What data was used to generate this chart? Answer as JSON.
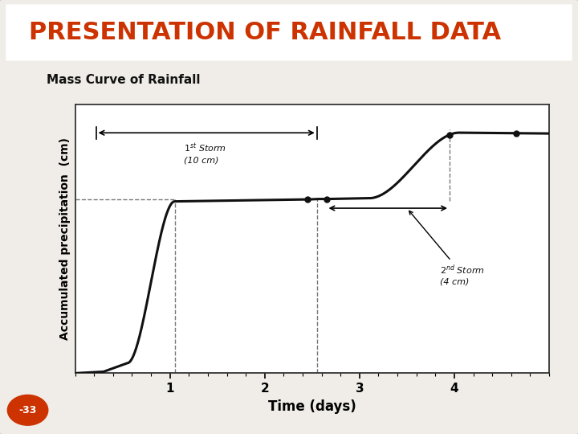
{
  "title": "PRESENTATION OF RAINFALL DATA",
  "title_color": "#cc3300",
  "title_bg": "#ffffff",
  "subtitle": "Mass Curve of Rainfall",
  "xlabel": "Time (days)",
  "ylabel": "Accumulated precipitation  (cm)",
  "outer_bg": "#f0ede8",
  "plot_bg": "#ffffff",
  "xlim": [
    0,
    5.0
  ],
  "x_ticks": [
    1,
    2,
    3,
    4
  ],
  "annotation_1st_storm_line1": "$1^{st}$ Storm",
  "annotation_1st_storm_line2": "(10 cm)",
  "annotation_2nd_storm_line1": "$2^{nd}$ Storm",
  "annotation_2nd_storm_line2": "(4 cm)",
  "page_num": "-33",
  "curve_color": "#111111",
  "dashed_color": "#777777",
  "dot_color": "#111111",
  "title_bar_color": "#ffffff",
  "border_color": "#bbbbbb"
}
